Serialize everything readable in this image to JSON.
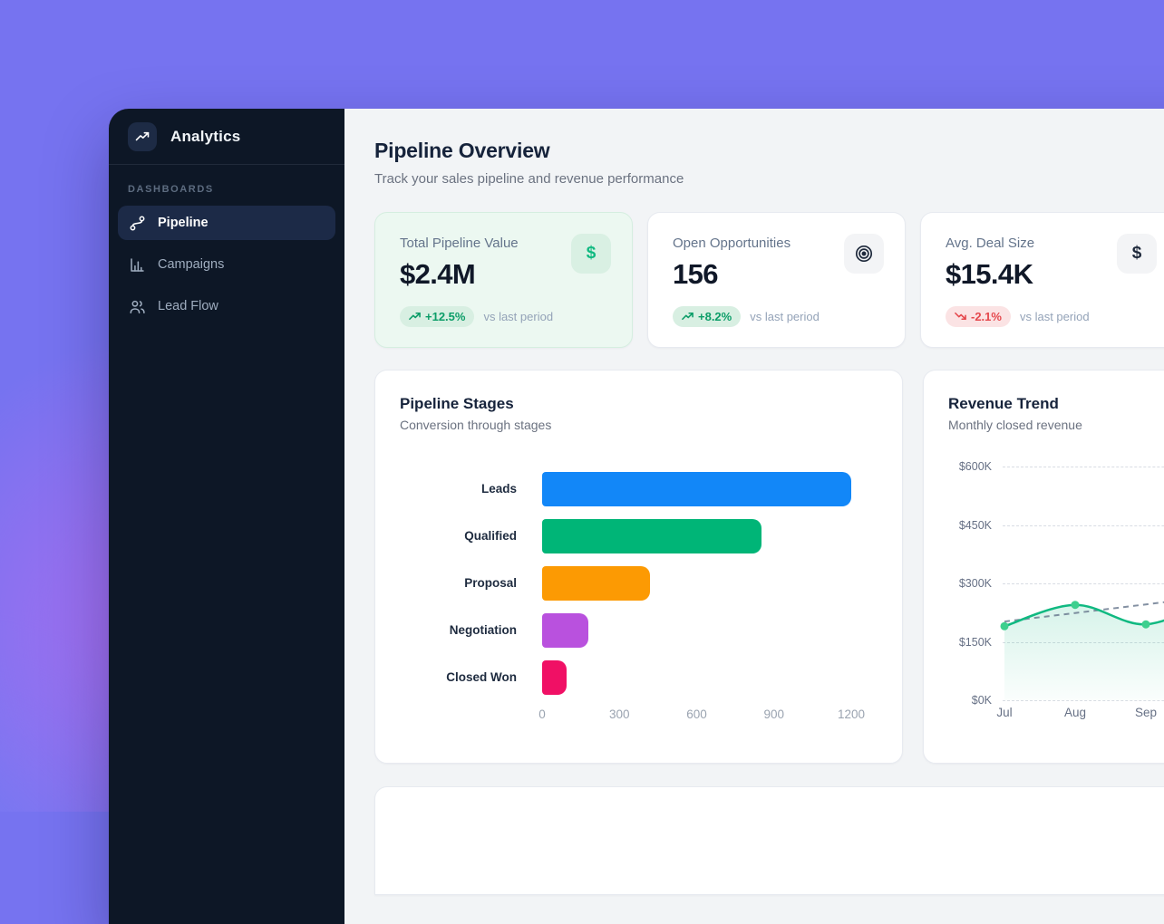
{
  "app": {
    "name": "Analytics"
  },
  "sidebar": {
    "section_label": "DASHBOARDS",
    "items": [
      {
        "label": "Pipeline",
        "icon": "route-icon",
        "active": true
      },
      {
        "label": "Campaigns",
        "icon": "bar-chart-icon",
        "active": false
      },
      {
        "label": "Lead Flow",
        "icon": "users-icon",
        "active": false
      }
    ]
  },
  "header": {
    "title": "Pipeline Overview",
    "subtitle": "Track your sales pipeline and revenue performance"
  },
  "kpis": [
    {
      "label": "Total Pipeline Value",
      "value": "$2.4M",
      "change": "+12.5%",
      "direction": "up",
      "comparison": "vs last period",
      "icon": "dollar-icon",
      "highlight": true
    },
    {
      "label": "Open Opportunities",
      "value": "156",
      "change": "+8.2%",
      "direction": "up",
      "comparison": "vs last period",
      "icon": "target-icon",
      "highlight": false
    },
    {
      "label": "Avg. Deal Size",
      "value": "$15.4K",
      "change": "-2.1%",
      "direction": "down",
      "comparison": "vs last period",
      "icon": "dollar-icon",
      "highlight": false
    }
  ],
  "chart_data": [
    {
      "type": "bar",
      "orientation": "horizontal",
      "title": "Pipeline Stages",
      "subtitle": "Conversion through stages",
      "categories": [
        "Leads",
        "Qualified",
        "Proposal",
        "Negotiation",
        "Closed Won"
      ],
      "values": [
        1200,
        850,
        420,
        180,
        95
      ],
      "colors": [
        "#1287f8",
        "#00b577",
        "#fc9a03",
        "#b951de",
        "#f01065"
      ],
      "xlim": [
        0,
        1200
      ],
      "xticks": [
        0,
        300,
        600,
        900,
        1200
      ],
      "grid": false
    },
    {
      "type": "line",
      "title": "Revenue Trend",
      "subtitle": "Monthly closed revenue",
      "x": [
        "Jul",
        "Aug",
        "Sep"
      ],
      "series": [
        {
          "name": "revenue",
          "values": [
            190,
            245,
            195
          ],
          "color": "#10b981",
          "style": "solid",
          "area": true,
          "markers": true
        },
        {
          "name": "trend",
          "values": [
            202,
            224,
            246
          ],
          "color": "#64748b",
          "style": "dashed"
        }
      ],
      "clipped_right": true,
      "next_point_estimate": {
        "revenue": 265,
        "trend": 268
      },
      "ylim": [
        0,
        600
      ],
      "ytick_labels": [
        "$0K",
        "$150K",
        "$300K",
        "$450K",
        "$600K"
      ],
      "grid": "dashed-horizontal"
    }
  ],
  "colors": {
    "backdrop": "#7673f0",
    "sidebar_bg": "#0d1726",
    "main_bg": "#f2f4f6",
    "accent_green": "#10b981",
    "badge_up": "#0c9d68",
    "badge_down": "#e5484d"
  }
}
